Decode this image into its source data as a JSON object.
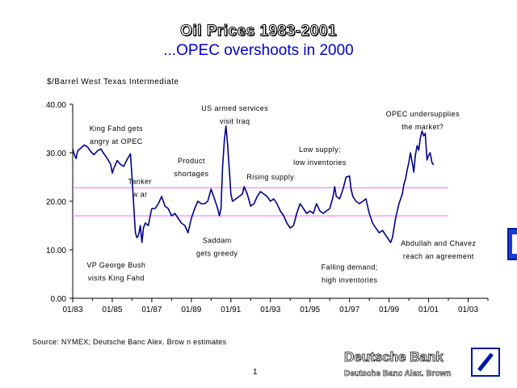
{
  "slide": {
    "title": "Oil Prices 1983-2001",
    "subtitle": "...OPEC overshoots in 2000",
    "source": "Source:  NYMEX; Deutsche Banc Alex. Brow n estimates",
    "page_number": "1"
  },
  "branding": {
    "name": "Deutsche Bank",
    "sub": "Deutsche Banc Alex. Brown",
    "logo_icon": "deutsche-bank-slash-logo",
    "brand_color": "#0018a8"
  },
  "chart_data": {
    "type": "line",
    "title": "",
    "ylabel": "$/Barrel West Texas Intermediate",
    "xlabel": "",
    "ylim": [
      0,
      40
    ],
    "yticks": [
      "0.00",
      "10.00",
      "20.00",
      "30.00",
      "40.00"
    ],
    "xlim": [
      1983.0,
      2004.0
    ],
    "xticks": [
      {
        "x": 1983.0,
        "label": "01/83"
      },
      {
        "x": 1985.0,
        "label": "01/85"
      },
      {
        "x": 1987.0,
        "label": "01/87"
      },
      {
        "x": 1989.0,
        "label": "01/89"
      },
      {
        "x": 1991.0,
        "label": "01/91"
      },
      {
        "x": 1993.0,
        "label": "01/93"
      },
      {
        "x": 1995.0,
        "label": "01/95"
      },
      {
        "x": 1997.0,
        "label": "01/97"
      },
      {
        "x": 1999.0,
        "label": "01/99"
      },
      {
        "x": 2001.0,
        "label": "01/01"
      },
      {
        "x": 2003.0,
        "label": "01/03"
      }
    ],
    "line_color": "#00008b",
    "reference_line_color": "#ff66ff",
    "reference_lines": [
      22.8,
      17.0
    ],
    "series": [
      {
        "points": [
          [
            1983.0,
            30.8
          ],
          [
            1983.08,
            29.6
          ],
          [
            1983.17,
            28.8
          ],
          [
            1983.25,
            30.4
          ],
          [
            1983.42,
            31.0
          ],
          [
            1983.58,
            31.6
          ],
          [
            1983.75,
            31.2
          ],
          [
            1983.92,
            30.2
          ],
          [
            1984.08,
            29.6
          ],
          [
            1984.25,
            30.4
          ],
          [
            1984.42,
            30.8
          ],
          [
            1984.58,
            29.8
          ],
          [
            1984.75,
            28.8
          ],
          [
            1984.92,
            27.6
          ],
          [
            1985.0,
            25.8
          ],
          [
            1985.08,
            26.8
          ],
          [
            1985.25,
            28.4
          ],
          [
            1985.42,
            27.6
          ],
          [
            1985.58,
            27.2
          ],
          [
            1985.75,
            28.6
          ],
          [
            1985.92,
            29.8
          ],
          [
            1986.0,
            25.0
          ],
          [
            1986.08,
            19.5
          ],
          [
            1986.17,
            13.5
          ],
          [
            1986.25,
            12.5
          ],
          [
            1986.33,
            13.0
          ],
          [
            1986.42,
            15.0
          ],
          [
            1986.5,
            11.5
          ],
          [
            1986.58,
            14.5
          ],
          [
            1986.67,
            15.5
          ],
          [
            1986.83,
            15.0
          ],
          [
            1986.92,
            17.0
          ],
          [
            1987.0,
            18.5
          ],
          [
            1987.17,
            18.5
          ],
          [
            1987.33,
            19.5
          ],
          [
            1987.5,
            21.0
          ],
          [
            1987.67,
            19.0
          ],
          [
            1987.83,
            18.5
          ],
          [
            1988.0,
            17.0
          ],
          [
            1988.17,
            17.5
          ],
          [
            1988.33,
            16.5
          ],
          [
            1988.5,
            15.5
          ],
          [
            1988.67,
            15.0
          ],
          [
            1988.83,
            13.5
          ],
          [
            1989.0,
            16.5
          ],
          [
            1989.17,
            18.5
          ],
          [
            1989.33,
            20.0
          ],
          [
            1989.5,
            19.5
          ],
          [
            1989.67,
            19.5
          ],
          [
            1989.83,
            20.0
          ],
          [
            1990.0,
            22.5
          ],
          [
            1990.17,
            20.5
          ],
          [
            1990.33,
            18.5
          ],
          [
            1990.42,
            17.0
          ],
          [
            1990.5,
            18.5
          ],
          [
            1990.58,
            27.0
          ],
          [
            1990.67,
            32.5
          ],
          [
            1990.75,
            35.5
          ],
          [
            1990.83,
            32.0
          ],
          [
            1990.92,
            26.5
          ],
          [
            1991.0,
            21.5
          ],
          [
            1991.08,
            20.0
          ],
          [
            1991.25,
            20.5
          ],
          [
            1991.42,
            21.0
          ],
          [
            1991.58,
            21.5
          ],
          [
            1991.67,
            23.0
          ],
          [
            1991.83,
            21.5
          ],
          [
            1992.0,
            19.0
          ],
          [
            1992.17,
            19.5
          ],
          [
            1992.33,
            21.0
          ],
          [
            1992.5,
            22.0
          ],
          [
            1992.67,
            21.5
          ],
          [
            1992.83,
            21.0
          ],
          [
            1993.0,
            20.0
          ],
          [
            1993.17,
            20.5
          ],
          [
            1993.33,
            19.5
          ],
          [
            1993.5,
            18.0
          ],
          [
            1993.67,
            17.0
          ],
          [
            1993.83,
            15.5
          ],
          [
            1994.0,
            14.5
          ],
          [
            1994.17,
            15.0
          ],
          [
            1994.33,
            17.5
          ],
          [
            1994.5,
            19.5
          ],
          [
            1994.67,
            18.5
          ],
          [
            1994.83,
            17.5
          ],
          [
            1995.0,
            18.0
          ],
          [
            1995.17,
            17.5
          ],
          [
            1995.33,
            19.5
          ],
          [
            1995.5,
            18.0
          ],
          [
            1995.67,
            17.5
          ],
          [
            1995.83,
            18.0
          ],
          [
            1996.0,
            18.5
          ],
          [
            1996.17,
            21.0
          ],
          [
            1996.25,
            23.0
          ],
          [
            1996.33,
            21.0
          ],
          [
            1996.5,
            20.5
          ],
          [
            1996.67,
            22.5
          ],
          [
            1996.83,
            25.0
          ],
          [
            1997.0,
            25.2
          ],
          [
            1997.08,
            22.5
          ],
          [
            1997.17,
            21.0
          ],
          [
            1997.33,
            20.0
          ],
          [
            1997.5,
            19.5
          ],
          [
            1997.67,
            20.0
          ],
          [
            1997.83,
            20.5
          ],
          [
            1998.0,
            17.5
          ],
          [
            1998.17,
            15.5
          ],
          [
            1998.33,
            14.5
          ],
          [
            1998.5,
            13.5
          ],
          [
            1998.67,
            14.0
          ],
          [
            1998.83,
            13.0
          ],
          [
            1999.0,
            12.0
          ],
          [
            1999.08,
            11.5
          ],
          [
            1999.17,
            12.5
          ],
          [
            1999.33,
            16.5
          ],
          [
            1999.5,
            19.5
          ],
          [
            1999.67,
            21.5
          ],
          [
            1999.75,
            23.5
          ],
          [
            1999.83,
            24.5
          ],
          [
            1999.92,
            26.5
          ],
          [
            2000.0,
            28.0
          ],
          [
            2000.08,
            30.0
          ],
          [
            2000.17,
            28.0
          ],
          [
            2000.25,
            26.0
          ],
          [
            2000.33,
            29.5
          ],
          [
            2000.42,
            31.5
          ],
          [
            2000.5,
            30.5
          ],
          [
            2000.58,
            33.0
          ],
          [
            2000.67,
            34.5
          ],
          [
            2000.75,
            33.5
          ],
          [
            2000.83,
            34.0
          ],
          [
            2000.92,
            28.5
          ],
          [
            2001.0,
            29.5
          ],
          [
            2001.08,
            30.0
          ],
          [
            2001.17,
            28.0
          ],
          [
            2001.25,
            27.5
          ]
        ]
      }
    ],
    "annotations": [
      {
        "lines": [
          "King Fahd gets",
          "angry at OPEC"
        ],
        "x": 1985.2,
        "y": 34.5
      },
      {
        "lines": [
          "US armed services",
          "visit Iraq"
        ],
        "x": 1991.2,
        "y": 38.7
      },
      {
        "lines": [
          "Product",
          "shortages"
        ],
        "x": 1989.0,
        "y": 27.8
      },
      {
        "lines": [
          "Tanker",
          "w ar"
        ],
        "x": 1986.4,
        "y": 23.6
      },
      {
        "lines": [
          "Rising supply"
        ],
        "x": 1993.0,
        "y": 24.5
      },
      {
        "lines": [
          "Low  supply;",
          "low  inventories"
        ],
        "x": 1995.5,
        "y": 30.2
      },
      {
        "lines": [
          "OPEC undersupplies",
          "the market?"
        ],
        "x": 2000.7,
        "y": 37.5
      },
      {
        "lines": [
          "Saddam",
          "gets greedy"
        ],
        "x": 1990.3,
        "y": 11.4
      },
      {
        "lines": [
          "VP George Bush",
          "visits King Fahd"
        ],
        "x": 1985.2,
        "y": 6.3
      },
      {
        "lines": [
          "Falling demand;",
          "high inventories"
        ],
        "x": 1997.0,
        "y": 5.9
      },
      {
        "lines": [
          "Abdullah and Chavez",
          "reach an agreement"
        ],
        "x": 2001.5,
        "y": 10.8
      }
    ]
  }
}
